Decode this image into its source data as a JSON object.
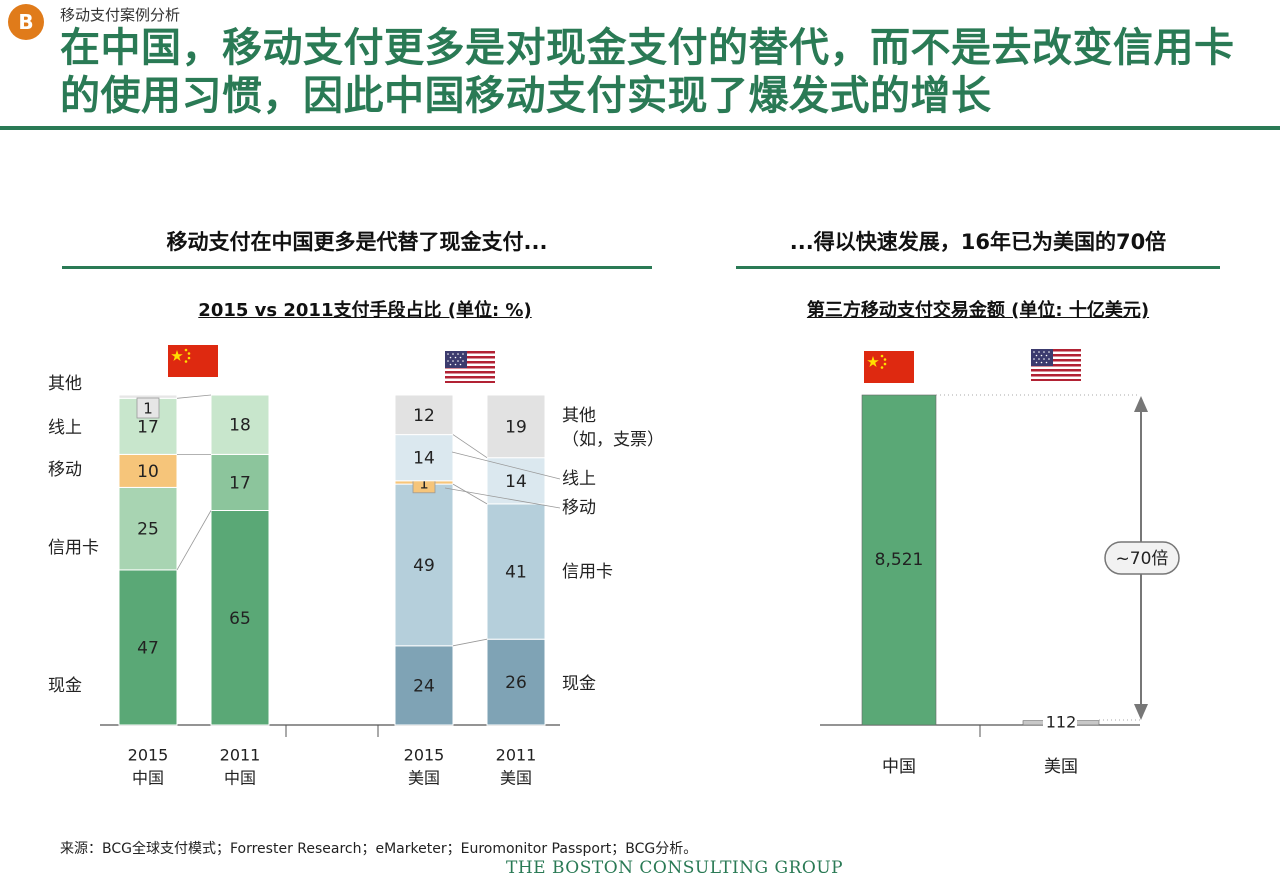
{
  "badge": "B",
  "section_label": "移动支付案例分析",
  "headline": "在中国，移动支付更多是对现金支付的替代，而不是去改变信用卡的使用习惯，因此中国移动支付实现了爆发式的增长",
  "left_subtitle": "移动支付在中国更多是代替了现金支付...",
  "right_subtitle": "...得以快速发展，16年已为美国的70倍",
  "source": "来源：BCG全球支付模式；Forrester Research；eMarketer；Euromonitor Passport；BCG分析。",
  "logo": "THE BOSTON CONSULTING GROUP",
  "colors": {
    "accent_green": "#2a7a55",
    "cn_cash": "#5aa876",
    "cn_credit": "#a8d4b2",
    "cn_mobile": "#f6c57a",
    "cn_online": "#c8e6cc",
    "cn_other": "#e6e6e6",
    "cn_2011_mobile": "#8cc59c",
    "us_cash": "#7fa3b5",
    "us_credit": "#b5cfdb",
    "us_mobile": "#f6c57a",
    "us_online": "#dbe8ef",
    "us_other": "#e2e2e2"
  },
  "chart_data": [
    {
      "type": "bar",
      "stacked": true,
      "title": "2015 vs 2011支付手段占比 (单位: %)",
      "categories": [
        "2015\n中国",
        "2011\n中国",
        "2015\n美国",
        "2011\n美国"
      ],
      "series": [
        {
          "name": "现金",
          "values": [
            47,
            65,
            24,
            26
          ]
        },
        {
          "name": "信用卡",
          "values": [
            25,
            null,
            49,
            41
          ]
        },
        {
          "name": "移动",
          "values": [
            10,
            17,
            1,
            null
          ]
        },
        {
          "name": "线上",
          "values": [
            17,
            18,
            14,
            14
          ]
        },
        {
          "name": "其他",
          "values": [
            1,
            null,
            12,
            19
          ]
        }
      ],
      "left_labels": [
        "其他",
        "线上",
        "移动",
        "信用卡",
        "现金"
      ],
      "right_labels": [
        "其他\n（如，支票）",
        "线上",
        "移动",
        "信用卡",
        "现金"
      ]
    },
    {
      "type": "bar",
      "title": "第三方移动支付交易金额 (单位: 十亿美元)",
      "categories": [
        "中国",
        "美国"
      ],
      "values": [
        8521,
        112
      ],
      "value_labels": [
        "8,521",
        "112"
      ],
      "annotation": "~70倍"
    }
  ]
}
